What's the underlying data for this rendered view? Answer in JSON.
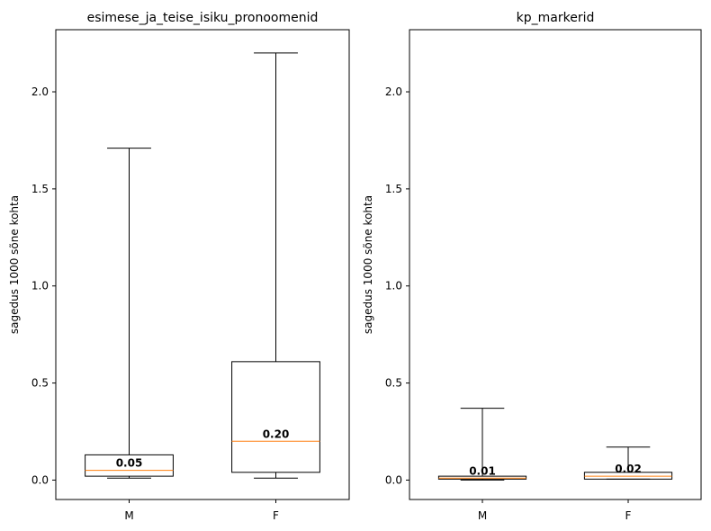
{
  "chart_data": [
    {
      "type": "boxplot",
      "title": "esimese_ja_teise_isiku_pronoomenid",
      "ylabel": "sagedus 1000 sõne kohta",
      "categories": [
        "M",
        "F"
      ],
      "ylim": [
        -0.1,
        2.32
      ],
      "yticks": [
        0.0,
        0.5,
        1.0,
        1.5,
        2.0
      ],
      "ytick_labels": [
        "0.0",
        "0.5",
        "1.0",
        "1.5",
        "2.0"
      ],
      "boxes": [
        {
          "category": "M",
          "whisker_low": 0.01,
          "q1": 0.02,
          "median": 0.05,
          "q3": 0.13,
          "whisker_high": 1.71,
          "label": "0.05"
        },
        {
          "category": "F",
          "whisker_low": 0.01,
          "q1": 0.04,
          "median": 0.2,
          "q3": 0.61,
          "whisker_high": 2.2,
          "label": "0.20"
        }
      ]
    },
    {
      "type": "boxplot",
      "title": "kp_markerid",
      "ylabel": "sagedus 1000 sõne kohta",
      "categories": [
        "M",
        "F"
      ],
      "ylim": [
        -0.1,
        2.32
      ],
      "yticks": [
        0.0,
        0.5,
        1.0,
        1.5,
        2.0
      ],
      "ytick_labels": [
        "0.0",
        "0.5",
        "1.0",
        "1.5",
        "2.0"
      ],
      "boxes": [
        {
          "category": "M",
          "whisker_low": 0.0,
          "q1": 0.005,
          "median": 0.01,
          "q3": 0.02,
          "whisker_high": 0.37,
          "label": "0.01"
        },
        {
          "category": "F",
          "whisker_low": 0.005,
          "q1": 0.005,
          "median": 0.02,
          "q3": 0.04,
          "whisker_high": 0.17,
          "label": "0.02"
        }
      ]
    }
  ],
  "colors": {
    "box_edge": "#000000",
    "median_line": "#ff7f0e"
  }
}
